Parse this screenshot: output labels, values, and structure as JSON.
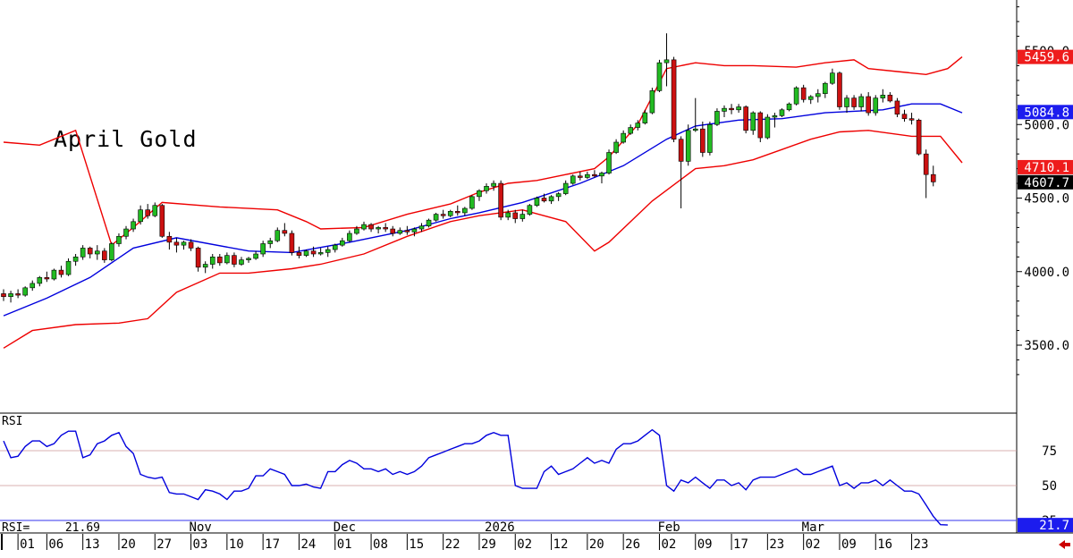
{
  "chart_data": {
    "type": "candlestick",
    "title": "April Gold",
    "colors": {
      "up": "#22bb22",
      "down": "#cc1111",
      "upper_band": "#ee0000",
      "middle_band": "#0000dd",
      "lower_band": "#ee0000",
      "rsi_line": "#0000dd"
    },
    "price_axis": {
      "ticks": [
        "5500.0",
        "5000.0",
        "4500.0",
        "4000.0",
        "3500.0"
      ],
      "tick_values": [
        5500,
        5000,
        4500,
        4000,
        3500
      ],
      "ylim": [
        3280,
        5900
      ]
    },
    "price_labels": {
      "upper": "5459.6",
      "middle": "5084.8",
      "lower": "4710.1",
      "last": "4607.7"
    },
    "price_label_values": {
      "upper": 5459.6,
      "middle": 5084.8,
      "lower": 4710.1,
      "last": 4607.7
    },
    "candles": [
      [
        3850,
        3880,
        3800,
        3830
      ],
      [
        3830,
        3870,
        3790,
        3850
      ],
      [
        3850,
        3880,
        3820,
        3840
      ],
      [
        3840,
        3900,
        3830,
        3890
      ],
      [
        3890,
        3940,
        3870,
        3920
      ],
      [
        3920,
        3970,
        3900,
        3960
      ],
      [
        3960,
        4000,
        3930,
        3950
      ],
      [
        3950,
        4020,
        3940,
        4010
      ],
      [
        4010,
        4040,
        3960,
        3980
      ],
      [
        3980,
        4090,
        3970,
        4070
      ],
      [
        4070,
        4120,
        4040,
        4100
      ],
      [
        4100,
        4180,
        4080,
        4160
      ],
      [
        4160,
        4170,
        4090,
        4120
      ],
      [
        4120,
        4180,
        4080,
        4140
      ],
      [
        4140,
        4160,
        4060,
        4080
      ],
      [
        4080,
        4200,
        4070,
        4190
      ],
      [
        4190,
        4260,
        4170,
        4240
      ],
      [
        4240,
        4310,
        4220,
        4290
      ],
      [
        4290,
        4360,
        4270,
        4340
      ],
      [
        4340,
        4450,
        4320,
        4420
      ],
      [
        4420,
        4460,
        4360,
        4380
      ],
      [
        4380,
        4470,
        4370,
        4450
      ],
      [
        4450,
        4460,
        4230,
        4240
      ],
      [
        4240,
        4270,
        4150,
        4200
      ],
      [
        4200,
        4230,
        4130,
        4180
      ],
      [
        4180,
        4210,
        4150,
        4200
      ],
      [
        4200,
        4220,
        4140,
        4160
      ],
      [
        4160,
        4170,
        4000,
        4030
      ],
      [
        4030,
        4070,
        3990,
        4050
      ],
      [
        4050,
        4120,
        4020,
        4100
      ],
      [
        4100,
        4120,
        4040,
        4060
      ],
      [
        4060,
        4130,
        4050,
        4110
      ],
      [
        4110,
        4130,
        4030,
        4050
      ],
      [
        4050,
        4100,
        4040,
        4080
      ],
      [
        4080,
        4100,
        4060,
        4090
      ],
      [
        4090,
        4140,
        4080,
        4120
      ],
      [
        4120,
        4210,
        4100,
        4190
      ],
      [
        4190,
        4230,
        4160,
        4210
      ],
      [
        4210,
        4300,
        4200,
        4280
      ],
      [
        4280,
        4330,
        4240,
        4260
      ],
      [
        4260,
        4280,
        4110,
        4130
      ],
      [
        4130,
        4170,
        4090,
        4110
      ],
      [
        4110,
        4150,
        4100,
        4140
      ],
      [
        4140,
        4170,
        4100,
        4120
      ],
      [
        4120,
        4160,
        4110,
        4130
      ],
      [
        4130,
        4170,
        4100,
        4150
      ],
      [
        4150,
        4190,
        4130,
        4180
      ],
      [
        4180,
        4230,
        4170,
        4210
      ],
      [
        4210,
        4280,
        4200,
        4260
      ],
      [
        4260,
        4310,
        4250,
        4290
      ],
      [
        4290,
        4340,
        4280,
        4320
      ],
      [
        4320,
        4330,
        4270,
        4290
      ],
      [
        4290,
        4310,
        4260,
        4300
      ],
      [
        4300,
        4330,
        4270,
        4290
      ],
      [
        4290,
        4310,
        4240,
        4260
      ],
      [
        4260,
        4300,
        4250,
        4280
      ],
      [
        4280,
        4310,
        4250,
        4270
      ],
      [
        4270,
        4300,
        4240,
        4290
      ],
      [
        4290,
        4330,
        4270,
        4310
      ],
      [
        4310,
        4360,
        4300,
        4350
      ],
      [
        4350,
        4400,
        4340,
        4390
      ],
      [
        4390,
        4420,
        4360,
        4380
      ],
      [
        4380,
        4420,
        4370,
        4410
      ],
      [
        4410,
        4450,
        4380,
        4400
      ],
      [
        4400,
        4440,
        4380,
        4430
      ],
      [
        4430,
        4520,
        4420,
        4510
      ],
      [
        4510,
        4560,
        4480,
        4550
      ],
      [
        4550,
        4600,
        4530,
        4580
      ],
      [
        4580,
        4620,
        4550,
        4600
      ],
      [
        4600,
        4620,
        4350,
        4370
      ],
      [
        4370,
        4420,
        4350,
        4400
      ],
      [
        4400,
        4420,
        4330,
        4360
      ],
      [
        4360,
        4420,
        4340,
        4390
      ],
      [
        4390,
        4460,
        4380,
        4450
      ],
      [
        4450,
        4510,
        4440,
        4500
      ],
      [
        4500,
        4530,
        4470,
        4480
      ],
      [
        4480,
        4520,
        4460,
        4510
      ],
      [
        4510,
        4540,
        4480,
        4530
      ],
      [
        4530,
        4620,
        4520,
        4600
      ],
      [
        4600,
        4660,
        4590,
        4650
      ],
      [
        4650,
        4680,
        4620,
        4640
      ],
      [
        4640,
        4680,
        4630,
        4660
      ],
      [
        4660,
        4690,
        4640,
        4650
      ],
      [
        4650,
        4680,
        4600,
        4670
      ],
      [
        4670,
        4830,
        4660,
        4810
      ],
      [
        4810,
        4900,
        4800,
        4880
      ],
      [
        4880,
        4960,
        4870,
        4940
      ],
      [
        4940,
        5000,
        4930,
        4980
      ],
      [
        4980,
        5030,
        4960,
        5010
      ],
      [
        5010,
        5100,
        5000,
        5080
      ],
      [
        5080,
        5250,
        5070,
        5230
      ],
      [
        5230,
        5440,
        5220,
        5420
      ],
      [
        5420,
        5620,
        5260,
        5440
      ],
      [
        5440,
        5460,
        4880,
        4900
      ],
      [
        4900,
        4920,
        4430,
        4750
      ],
      [
        4750,
        5000,
        4720,
        4960
      ],
      [
        4960,
        5180,
        4950,
        4970
      ],
      [
        4970,
        5020,
        4780,
        4810
      ],
      [
        4810,
        5020,
        4790,
        5000
      ],
      [
        5000,
        5110,
        4990,
        5090
      ],
      [
        5090,
        5130,
        5050,
        5110
      ],
      [
        5110,
        5140,
        5070,
        5100
      ],
      [
        5100,
        5140,
        5080,
        5120
      ],
      [
        5120,
        5130,
        4940,
        4960
      ],
      [
        4960,
        5090,
        4930,
        5080
      ],
      [
        5080,
        5090,
        4880,
        4910
      ],
      [
        4910,
        5070,
        4900,
        5050
      ],
      [
        5050,
        5080,
        4980,
        5060
      ],
      [
        5060,
        5110,
        5050,
        5100
      ],
      [
        5100,
        5150,
        5090,
        5140
      ],
      [
        5140,
        5260,
        5130,
        5250
      ],
      [
        5250,
        5270,
        5150,
        5170
      ],
      [
        5170,
        5200,
        5140,
        5190
      ],
      [
        5190,
        5240,
        5150,
        5210
      ],
      [
        5210,
        5290,
        5180,
        5280
      ],
      [
        5280,
        5380,
        5270,
        5350
      ],
      [
        5350,
        5360,
        5100,
        5120
      ],
      [
        5120,
        5200,
        5080,
        5180
      ],
      [
        5180,
        5200,
        5100,
        5120
      ],
      [
        5120,
        5210,
        5090,
        5190
      ],
      [
        5190,
        5220,
        5060,
        5080
      ],
      [
        5080,
        5200,
        5060,
        5180
      ],
      [
        5180,
        5240,
        5150,
        5200
      ],
      [
        5200,
        5220,
        5150,
        5160
      ],
      [
        5160,
        5180,
        5050,
        5070
      ],
      [
        5070,
        5100,
        5020,
        5040
      ],
      [
        5040,
        5080,
        5000,
        5030
      ],
      [
        5030,
        5040,
        4790,
        4800
      ],
      [
        4800,
        4830,
        4500,
        4660
      ],
      [
        4660,
        4720,
        4580,
        4610
      ]
    ],
    "bollinger": {
      "upper": [
        [
          0,
          4880
        ],
        [
          5,
          4860
        ],
        [
          10,
          4960
        ],
        [
          15,
          4180
        ],
        [
          18,
          4300
        ],
        [
          22,
          4470
        ],
        [
          30,
          4440
        ],
        [
          38,
          4420
        ],
        [
          42,
          4340
        ],
        [
          44,
          4290
        ],
        [
          50,
          4300
        ],
        [
          56,
          4390
        ],
        [
          62,
          4460
        ],
        [
          66,
          4540
        ],
        [
          70,
          4600
        ],
        [
          74,
          4620
        ],
        [
          78,
          4660
        ],
        [
          82,
          4700
        ],
        [
          84,
          4780
        ],
        [
          88,
          5000
        ],
        [
          92,
          5380
        ],
        [
          96,
          5420
        ],
        [
          100,
          5400
        ],
        [
          104,
          5400
        ],
        [
          110,
          5390
        ],
        [
          114,
          5420
        ],
        [
          118,
          5440
        ],
        [
          120,
          5380
        ],
        [
          124,
          5360
        ],
        [
          128,
          5340
        ],
        [
          131,
          5380
        ],
        [
          133,
          5460
        ]
      ],
      "middle": [
        [
          0,
          3700
        ],
        [
          6,
          3820
        ],
        [
          12,
          3960
        ],
        [
          18,
          4160
        ],
        [
          24,
          4230
        ],
        [
          34,
          4140
        ],
        [
          40,
          4130
        ],
        [
          48,
          4200
        ],
        [
          56,
          4280
        ],
        [
          62,
          4360
        ],
        [
          66,
          4400
        ],
        [
          72,
          4470
        ],
        [
          80,
          4600
        ],
        [
          86,
          4720
        ],
        [
          92,
          4900
        ],
        [
          96,
          4990
        ],
        [
          102,
          5030
        ],
        [
          108,
          5040
        ],
        [
          114,
          5080
        ],
        [
          118,
          5090
        ],
        [
          122,
          5100
        ],
        [
          126,
          5140
        ],
        [
          130,
          5140
        ],
        [
          133,
          5080
        ]
      ],
      "lower": [
        [
          0,
          3480
        ],
        [
          4,
          3600
        ],
        [
          10,
          3640
        ],
        [
          16,
          3650
        ],
        [
          20,
          3680
        ],
        [
          24,
          3860
        ],
        [
          30,
          3990
        ],
        [
          34,
          3990
        ],
        [
          40,
          4020
        ],
        [
          44,
          4050
        ],
        [
          50,
          4120
        ],
        [
          56,
          4240
        ],
        [
          62,
          4340
        ],
        [
          66,
          4380
        ],
        [
          72,
          4420
        ],
        [
          78,
          4340
        ],
        [
          82,
          4140
        ],
        [
          84,
          4200
        ],
        [
          90,
          4480
        ],
        [
          96,
          4700
        ],
        [
          100,
          4720
        ],
        [
          104,
          4760
        ],
        [
          108,
          4830
        ],
        [
          112,
          4900
        ],
        [
          116,
          4950
        ],
        [
          120,
          4960
        ],
        [
          126,
          4920
        ],
        [
          130,
          4920
        ],
        [
          133,
          4740
        ]
      ]
    },
    "rsi": {
      "label": "RSI",
      "readout_label": "RSI=",
      "readout_value": "21.69",
      "last_label": "21.7",
      "last_value": 21.7,
      "ticks": [
        "75",
        "50",
        "25"
      ],
      "tick_values": [
        75,
        50,
        25
      ],
      "ylim": [
        20,
        95
      ],
      "values": [
        82,
        70,
        71,
        78,
        82,
        82,
        78,
        80,
        86,
        89,
        89,
        70,
        72,
        80,
        82,
        86,
        88,
        78,
        73,
        58,
        56,
        55,
        56,
        45,
        44,
        44,
        42,
        40,
        47,
        46,
        44,
        40,
        46,
        46,
        48,
        57,
        57,
        62,
        60,
        58,
        50,
        50,
        51,
        49,
        48,
        60,
        60,
        65,
        68,
        66,
        62,
        62,
        60,
        62,
        58,
        60,
        58,
        60,
        64,
        70,
        72,
        74,
        76,
        78,
        80,
        80,
        82,
        86,
        88,
        86,
        86,
        50,
        48,
        48,
        48,
        60,
        64,
        58,
        60,
        62,
        66,
        70,
        66,
        68,
        66,
        76,
        80,
        80,
        82,
        86,
        90,
        86,
        50,
        46,
        54,
        52,
        56,
        52,
        48,
        54,
        54,
        50,
        52,
        47,
        54,
        56,
        56,
        56,
        58,
        60,
        62,
        58,
        58,
        60,
        62,
        64,
        50,
        52,
        48,
        52,
        52,
        54,
        50,
        54,
        50,
        46,
        46,
        44,
        36,
        28,
        22,
        21.7
      ]
    },
    "x_axis": {
      "ticks": [
        {
          "label": "01",
          "i": 2
        },
        {
          "label": "06",
          "i": 6
        },
        {
          "label": "13",
          "i": 11
        },
        {
          "label": "20",
          "i": 16
        },
        {
          "label": "27",
          "i": 21
        },
        {
          "label": "03",
          "i": 26
        },
        {
          "label": "10",
          "i": 31
        },
        {
          "label": "17",
          "i": 36
        },
        {
          "label": "24",
          "i": 41
        },
        {
          "label": "01",
          "i": 46
        },
        {
          "label": "08",
          "i": 51
        },
        {
          "label": "15",
          "i": 56
        },
        {
          "label": "22",
          "i": 61
        },
        {
          "label": "29",
          "i": 66
        },
        {
          "label": "02",
          "i": 71
        },
        {
          "label": "12",
          "i": 76
        },
        {
          "label": "20",
          "i": 81
        },
        {
          "label": "26",
          "i": 86
        },
        {
          "label": "02",
          "i": 91
        },
        {
          "label": "09",
          "i": 96
        },
        {
          "label": "17",
          "i": 101
        },
        {
          "label": "23",
          "i": 106
        },
        {
          "label": "02",
          "i": 111
        },
        {
          "label": "09",
          "i": 116
        },
        {
          "label": "16",
          "i": 121
        },
        {
          "label": "23",
          "i": 126
        }
      ],
      "months": [
        {
          "label": "Nov",
          "i": 26
        },
        {
          "label": "Dec",
          "i": 46
        },
        {
          "label": "2026",
          "i": 67
        },
        {
          "label": "Feb",
          "i": 91
        },
        {
          "label": "Mar",
          "i": 111
        }
      ]
    }
  }
}
